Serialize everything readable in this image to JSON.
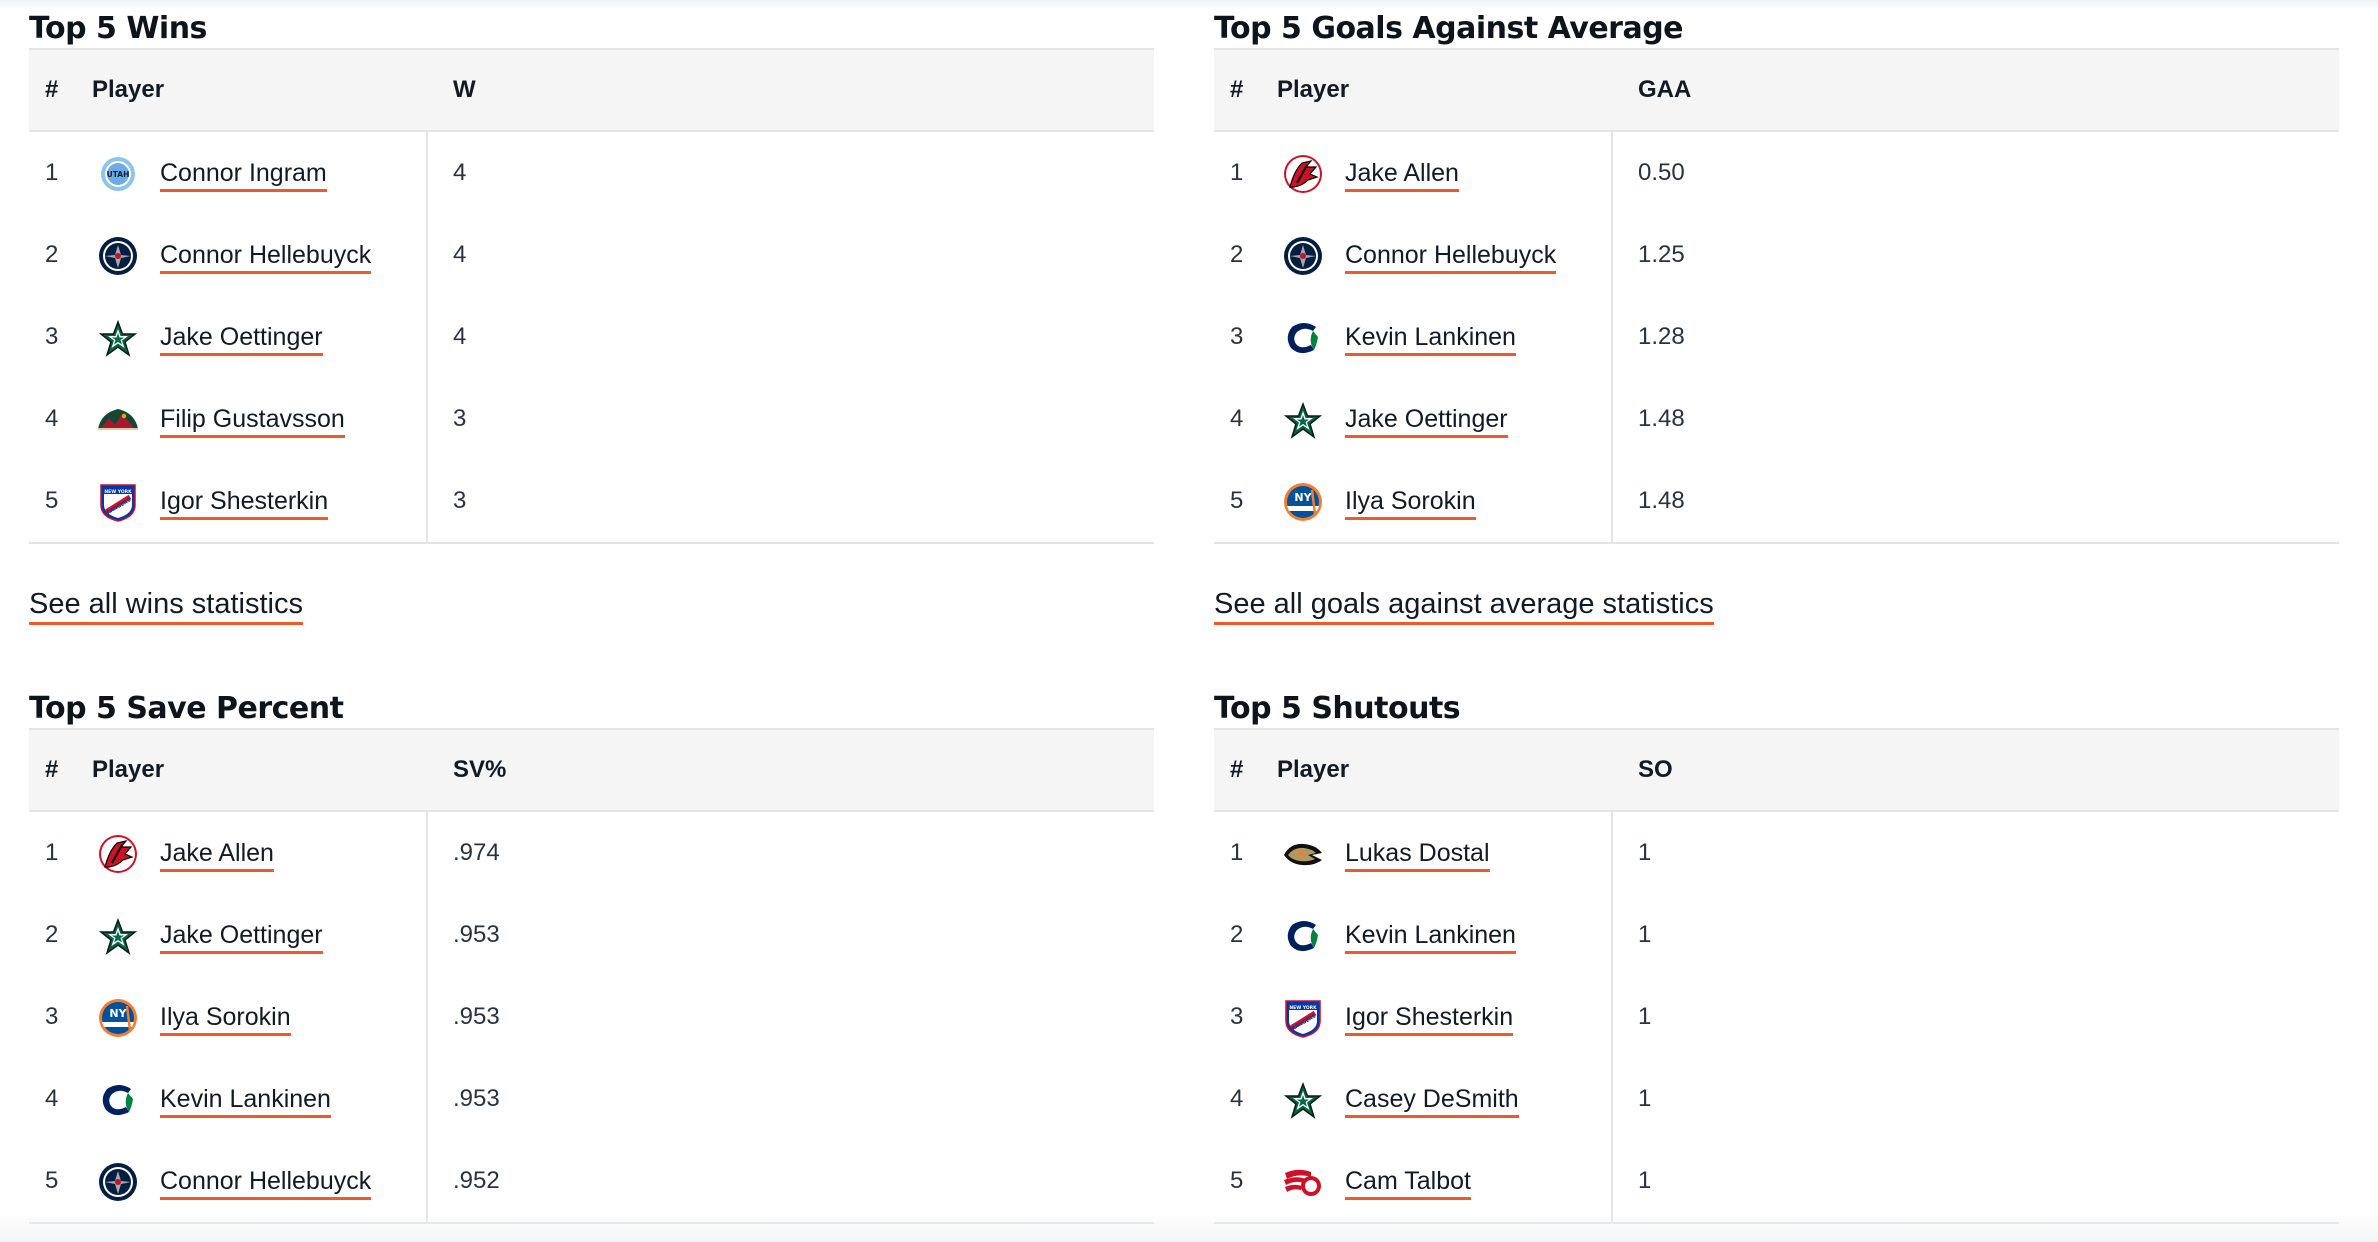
{
  "accent_color": "#f05a28",
  "header_bg_color": "#f5f5f5",
  "panels": [
    {
      "title": "Top 5 Wins",
      "columns": {
        "rank": "#",
        "player": "Player",
        "stat": "W"
      },
      "rows": [
        {
          "rank": "1",
          "player": "Connor Ingram",
          "team_logo": "utah-logo",
          "value": "4"
        },
        {
          "rank": "2",
          "player": "Connor Hellebuyck",
          "team_logo": "winnipeg-jets-logo",
          "value": "4"
        },
        {
          "rank": "3",
          "player": "Jake Oettinger",
          "team_logo": "dallas-stars-logo",
          "value": "4"
        },
        {
          "rank": "4",
          "player": "Filip Gustavsson",
          "team_logo": "minnesota-wild-logo",
          "value": "3"
        },
        {
          "rank": "5",
          "player": "Igor Shesterkin",
          "team_logo": "new-york-rangers-logo",
          "value": "3"
        }
      ],
      "see_all": "See all wins statistics"
    },
    {
      "title": "Top 5 Goals Against Average",
      "columns": {
        "rank": "#",
        "player": "Player",
        "stat": "GAA"
      },
      "rows": [
        {
          "rank": "1",
          "player": "Jake Allen",
          "team_logo": "new-jersey-devils-logo",
          "value": "0.50"
        },
        {
          "rank": "2",
          "player": "Connor Hellebuyck",
          "team_logo": "winnipeg-jets-logo",
          "value": "1.25"
        },
        {
          "rank": "3",
          "player": "Kevin Lankinen",
          "team_logo": "vancouver-canucks-logo",
          "value": "1.28"
        },
        {
          "rank": "4",
          "player": "Jake Oettinger",
          "team_logo": "dallas-stars-logo",
          "value": "1.48"
        },
        {
          "rank": "5",
          "player": "Ilya Sorokin",
          "team_logo": "new-york-islanders-logo",
          "value": "1.48"
        }
      ],
      "see_all": "See all goals against average statistics"
    },
    {
      "title": "Top 5 Save Percent",
      "columns": {
        "rank": "#",
        "player": "Player",
        "stat": "SV%"
      },
      "rows": [
        {
          "rank": "1",
          "player": "Jake Allen",
          "team_logo": "new-jersey-devils-logo",
          "value": ".974"
        },
        {
          "rank": "2",
          "player": "Jake Oettinger",
          "team_logo": "dallas-stars-logo",
          "value": ".953"
        },
        {
          "rank": "3",
          "player": "Ilya Sorokin",
          "team_logo": "new-york-islanders-logo",
          "value": ".953"
        },
        {
          "rank": "4",
          "player": "Kevin Lankinen",
          "team_logo": "vancouver-canucks-logo",
          "value": ".953"
        },
        {
          "rank": "5",
          "player": "Connor Hellebuyck",
          "team_logo": "winnipeg-jets-logo",
          "value": ".952"
        }
      ],
      "see_all": ""
    },
    {
      "title": "Top 5 Shutouts",
      "columns": {
        "rank": "#",
        "player": "Player",
        "stat": "SO"
      },
      "rows": [
        {
          "rank": "1",
          "player": "Lukas Dostal",
          "team_logo": "anaheim-ducks-logo",
          "value": "1"
        },
        {
          "rank": "2",
          "player": "Kevin Lankinen",
          "team_logo": "vancouver-canucks-logo",
          "value": "1"
        },
        {
          "rank": "3",
          "player": "Igor Shesterkin",
          "team_logo": "new-york-rangers-logo",
          "value": "1"
        },
        {
          "rank": "4",
          "player": "Casey DeSmith",
          "team_logo": "dallas-stars-logo",
          "value": "1"
        },
        {
          "rank": "5",
          "player": "Cam Talbot",
          "team_logo": "detroit-red-wings-logo",
          "value": "1"
        }
      ],
      "see_all": ""
    }
  ]
}
